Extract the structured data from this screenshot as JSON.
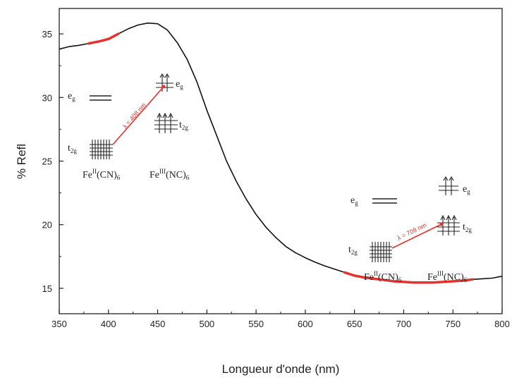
{
  "chart_data": {
    "type": "line",
    "title": "",
    "xlabel": "Longueur d'onde (nm)",
    "ylabel": "% Refl",
    "xlim": [
      350,
      800
    ],
    "ylim": [
      13,
      37
    ],
    "xticks": [
      "350",
      "400",
      "450",
      "500",
      "550",
      "600",
      "650",
      "700",
      "750",
      "800"
    ],
    "yticks": [
      "15",
      "20",
      "25",
      "30",
      "35"
    ],
    "grid": false,
    "colors": {
      "curve": "#111111",
      "highlight": "#e8312a",
      "axis": "#222222"
    },
    "series": [
      {
        "x": [
          350,
          360,
          370,
          380,
          390,
          400,
          410,
          420,
          430,
          440,
          450,
          460,
          470,
          480,
          490,
          500,
          510,
          520,
          530,
          540,
          550,
          560,
          570,
          580,
          590,
          600,
          610,
          620,
          630,
          640,
          650,
          660,
          670,
          680,
          690,
          700,
          710,
          720,
          730,
          740,
          750,
          760,
          770,
          780,
          790,
          800
        ],
        "y": [
          33.8,
          34.0,
          34.1,
          34.25,
          34.4,
          34.6,
          35.0,
          35.4,
          35.7,
          35.85,
          35.8,
          35.3,
          34.3,
          33.0,
          31.2,
          29.0,
          27.0,
          25.0,
          23.4,
          22.0,
          20.8,
          19.8,
          19.0,
          18.3,
          17.8,
          17.4,
          17.05,
          16.75,
          16.5,
          16.25,
          16.0,
          15.85,
          15.75,
          15.65,
          15.55,
          15.5,
          15.45,
          15.45,
          15.45,
          15.5,
          15.55,
          15.6,
          15.7,
          15.75,
          15.8,
          15.95
        ]
      }
    ],
    "highlight_ranges": [
      [
        380,
        410
      ],
      [
        640,
        770
      ]
    ],
    "annotations": {
      "left": {
        "eg": "eg",
        "t2g_left": "t2g",
        "eg_right": "eg",
        "t2g_right": "t2g",
        "lambda": "λ = 408 nm",
        "complex_left": "FeII(CN)6",
        "complex_right": "FeIII(NC)6"
      },
      "right": {
        "eg": "eg",
        "t2g_left": "t2g",
        "eg_right": "eg",
        "t2g_right": "t2g",
        "lambda": "λ = 709 nm",
        "complex_left": "FeII(CN)6",
        "complex_right": "FeIII(NC)6"
      }
    }
  }
}
